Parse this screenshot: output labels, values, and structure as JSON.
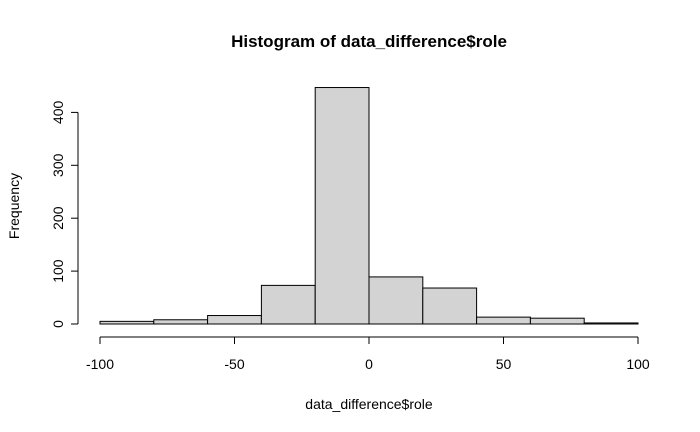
{
  "chart_data": {
    "type": "bar",
    "title": "Histogram of data_difference$role",
    "xlabel": "data_difference$role",
    "ylabel": "Frequency",
    "bins": [
      {
        "from": -100,
        "to": -80,
        "count": 5
      },
      {
        "from": -80,
        "to": -60,
        "count": 8
      },
      {
        "from": -60,
        "to": -40,
        "count": 16
      },
      {
        "from": -40,
        "to": -20,
        "count": 73
      },
      {
        "from": -20,
        "to": 0,
        "count": 447
      },
      {
        "from": 0,
        "to": 20,
        "count": 89
      },
      {
        "from": 20,
        "to": 40,
        "count": 68
      },
      {
        "from": 40,
        "to": 60,
        "count": 13
      },
      {
        "from": 60,
        "to": 80,
        "count": 11
      },
      {
        "from": 80,
        "to": 100,
        "count": 2
      }
    ],
    "xlim": [
      -100,
      100
    ],
    "ylim": [
      0,
      447
    ],
    "x_ticks": [
      -100,
      -50,
      0,
      50,
      100
    ],
    "y_ticks": [
      0,
      100,
      200,
      300,
      400
    ],
    "bar_color": "#d3d3d3",
    "grid": false,
    "legend": "none"
  }
}
